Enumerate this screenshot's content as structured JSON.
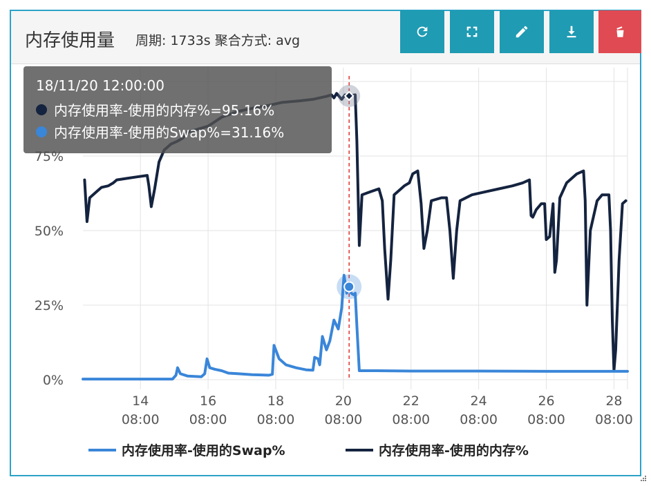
{
  "panel": {
    "title": "内存使用量",
    "meta": "周期: 1733s 聚合方式: avg"
  },
  "toolbar": {
    "refresh_icon": "refresh-icon",
    "fullscreen_icon": "fullscreen-icon",
    "edit_icon": "pencil-icon",
    "download_icon": "download-icon",
    "delete_icon": "trash-icon"
  },
  "tooltip": {
    "time": "18/11/20 12:00:00",
    "rows": [
      {
        "text": "内存使用率-使用的内存%=95.16%",
        "color": "#14233f"
      },
      {
        "text": "内存使用率-使用的Swap%=31.16%",
        "color": "#3a86d9"
      }
    ]
  },
  "legend": [
    {
      "label": "内存使用率-使用的Swap%",
      "color": "#3a86d9"
    },
    {
      "label": "内存使用率-使用的内存%",
      "color": "#14233f"
    }
  ],
  "chart_data": {
    "type": "line",
    "x_ticks": [
      {
        "day": "14",
        "time": "08:00",
        "x": 14.0
      },
      {
        "day": "16",
        "time": "08:00",
        "x": 16.0
      },
      {
        "day": "18",
        "time": "08:00",
        "x": 18.0
      },
      {
        "day": "20",
        "time": "08:00",
        "x": 20.0
      },
      {
        "day": "22",
        "time": "08:00",
        "x": 22.0
      },
      {
        "day": "24",
        "time": "08:00",
        "x": 24.0
      },
      {
        "day": "26",
        "time": "08:00",
        "x": 26.0
      },
      {
        "day": "28",
        "time": "08:00",
        "x": 28.0
      }
    ],
    "xlim": [
      12.3,
      28.4
    ],
    "ylim": [
      0,
      100
    ],
    "y_ticks": [
      {
        "v": 0,
        "label": "0%"
      },
      {
        "v": 25,
        "label": "25%"
      },
      {
        "v": 50,
        "label": "50%"
      },
      {
        "v": 75,
        "label": "75%"
      }
    ],
    "hover_x": 20.17,
    "grid": true,
    "legend_position": "bottom",
    "series": [
      {
        "name": "内存使用率-使用的内存%",
        "color": "#14233f",
        "points": [
          [
            12.35,
            67
          ],
          [
            12.42,
            53
          ],
          [
            12.5,
            61
          ],
          [
            12.7,
            63
          ],
          [
            12.85,
            64.5
          ],
          [
            13.05,
            65
          ],
          [
            13.2,
            66
          ],
          [
            13.3,
            67
          ],
          [
            13.6,
            67.5
          ],
          [
            13.9,
            68
          ],
          [
            14.2,
            68.5
          ],
          [
            14.25,
            65
          ],
          [
            14.32,
            58
          ],
          [
            14.42,
            64
          ],
          [
            14.55,
            73
          ],
          [
            14.7,
            77
          ],
          [
            14.9,
            79
          ],
          [
            15.1,
            80
          ],
          [
            15.25,
            81
          ],
          [
            15.4,
            83
          ],
          [
            15.7,
            84
          ],
          [
            16.0,
            85
          ],
          [
            16.4,
            88
          ],
          [
            16.9,
            90
          ],
          [
            17.3,
            91
          ],
          [
            17.8,
            92
          ],
          [
            18.2,
            93
          ],
          [
            18.7,
            93.5
          ],
          [
            19.1,
            94
          ],
          [
            19.5,
            95
          ],
          [
            19.65,
            95.5
          ],
          [
            19.72,
            94.5
          ],
          [
            19.8,
            96
          ],
          [
            19.95,
            94
          ],
          [
            20.05,
            95.5
          ],
          [
            20.17,
            95.2
          ],
          [
            20.35,
            95.5
          ],
          [
            20.4,
            80
          ],
          [
            20.47,
            45
          ],
          [
            20.55,
            62
          ],
          [
            20.8,
            63
          ],
          [
            21.05,
            64
          ],
          [
            21.15,
            60
          ],
          [
            21.22,
            44
          ],
          [
            21.32,
            27
          ],
          [
            21.4,
            40
          ],
          [
            21.5,
            62
          ],
          [
            21.8,
            65
          ],
          [
            21.95,
            66
          ],
          [
            22.05,
            69
          ],
          [
            22.2,
            70
          ],
          [
            22.3,
            59
          ],
          [
            22.38,
            44
          ],
          [
            22.48,
            50
          ],
          [
            22.6,
            60
          ],
          [
            22.9,
            61
          ],
          [
            23.05,
            61
          ],
          [
            23.15,
            50
          ],
          [
            23.25,
            34
          ],
          [
            23.35,
            50
          ],
          [
            23.45,
            60
          ],
          [
            23.8,
            62
          ],
          [
            24.2,
            63
          ],
          [
            24.6,
            64
          ],
          [
            25.0,
            65
          ],
          [
            25.3,
            66
          ],
          [
            25.5,
            67
          ],
          [
            25.55,
            55
          ],
          [
            25.6,
            54.5
          ],
          [
            25.7,
            57
          ],
          [
            25.85,
            59
          ],
          [
            25.95,
            59
          ],
          [
            26.0,
            47
          ],
          [
            26.1,
            48
          ],
          [
            26.2,
            59
          ],
          [
            26.25,
            36
          ],
          [
            26.3,
            40
          ],
          [
            26.4,
            61
          ],
          [
            26.6,
            66
          ],
          [
            26.9,
            69
          ],
          [
            27.1,
            70
          ],
          [
            27.15,
            60
          ],
          [
            27.2,
            25
          ],
          [
            27.3,
            50
          ],
          [
            27.5,
            60
          ],
          [
            27.65,
            62
          ],
          [
            27.85,
            62
          ],
          [
            27.9,
            50
          ],
          [
            27.95,
            20
          ],
          [
            28.0,
            3
          ],
          [
            28.05,
            10
          ],
          [
            28.15,
            40
          ],
          [
            28.25,
            59
          ],
          [
            28.35,
            60
          ]
        ]
      },
      {
        "name": "内存使用率-使用的Swap%",
        "color": "#3a86d9",
        "points": [
          [
            12.3,
            0.2
          ],
          [
            13.5,
            0.2
          ],
          [
            14.5,
            0.2
          ],
          [
            14.95,
            0.2
          ],
          [
            15.05,
            1.5
          ],
          [
            15.1,
            4
          ],
          [
            15.18,
            2
          ],
          [
            15.4,
            1.2
          ],
          [
            15.8,
            1.0
          ],
          [
            15.9,
            2
          ],
          [
            15.97,
            7
          ],
          [
            16.05,
            4
          ],
          [
            16.2,
            3.5
          ],
          [
            16.4,
            3
          ],
          [
            16.6,
            2.2
          ],
          [
            16.9,
            2.0
          ],
          [
            17.3,
            1.7
          ],
          [
            17.8,
            1.5
          ],
          [
            17.9,
            1.8
          ],
          [
            17.95,
            11.5
          ],
          [
            18.1,
            7
          ],
          [
            18.3,
            5
          ],
          [
            18.6,
            4
          ],
          [
            18.9,
            3.3
          ],
          [
            19.1,
            3.2
          ],
          [
            19.15,
            7.5
          ],
          [
            19.25,
            7
          ],
          [
            19.3,
            5
          ],
          [
            19.38,
            14.5
          ],
          [
            19.5,
            10
          ],
          [
            19.6,
            13
          ],
          [
            19.72,
            20
          ],
          [
            19.85,
            17
          ],
          [
            19.95,
            24
          ],
          [
            20.02,
            35
          ],
          [
            20.1,
            29
          ],
          [
            20.17,
            31.16
          ],
          [
            20.23,
            29
          ],
          [
            20.3,
            28.5
          ],
          [
            20.35,
            29
          ],
          [
            20.4,
            18
          ],
          [
            20.47,
            3
          ],
          [
            20.6,
            3
          ],
          [
            21.0,
            3
          ],
          [
            22.0,
            2.9
          ],
          [
            24.0,
            2.9
          ],
          [
            26.0,
            2.8
          ],
          [
            28.4,
            2.8
          ]
        ]
      }
    ]
  }
}
